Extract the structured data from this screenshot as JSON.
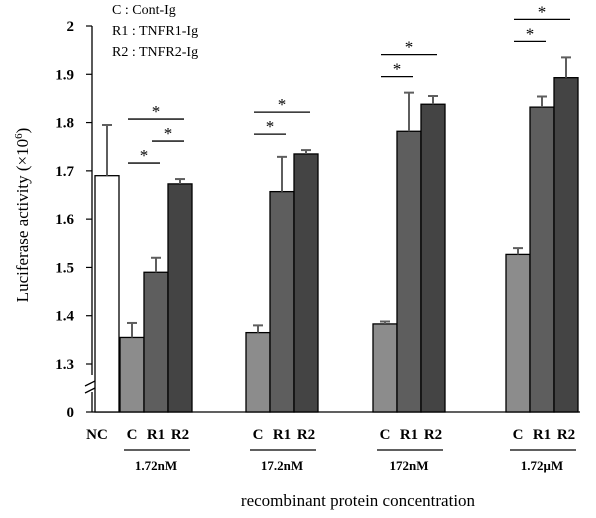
{
  "chart_data": {
    "type": "bar",
    "title": "",
    "xlabel": "recombinant protein concentration",
    "ylabel": "Luciferase activity (×10",
    "ylabel_exp": "6",
    "ylabel_close": ")",
    "y_axis_break": true,
    "ylim": [
      1.3,
      2.0
    ],
    "yticks": [
      "0",
      "1.3",
      "1.4",
      "1.5",
      "1.6",
      "1.7",
      "1.8",
      "1.9",
      "2"
    ],
    "legend": [
      "C : Cont-Ig",
      "R1 : TNFR1-Ig",
      "R2 : TNFR2-Ig"
    ],
    "legend_placement": "top-left",
    "colors": {
      "NC": "#ffffff",
      "C": "#8c8c8c",
      "R1": "#5e5e5e",
      "R2": "#444444"
    },
    "control": {
      "label": "NC",
      "value": 1.69,
      "error": 0.105
    },
    "category_labels": [
      "C",
      "R1",
      "R2"
    ],
    "groups": [
      {
        "label": "1.72nM",
        "values": [
          1.355,
          1.49,
          1.673
        ],
        "errors": [
          0.03,
          0.03,
          0.01
        ]
      },
      {
        "label": "17.2nM",
        "values": [
          1.365,
          1.657,
          1.735
        ],
        "errors": [
          0.015,
          0.072,
          0.008
        ]
      },
      {
        "label": "172nM",
        "values": [
          1.383,
          1.782,
          1.838
        ],
        "errors": [
          0.005,
          0.08,
          0.017
        ]
      },
      {
        "label": "1.72μM",
        "values": [
          1.527,
          1.832,
          1.893
        ],
        "errors": [
          0.013,
          0.022,
          0.042
        ]
      }
    ],
    "significance_marker": "*",
    "significance": [
      {
        "group": 0,
        "pairs": [
          [
            0,
            1
          ],
          [
            0,
            2
          ],
          [
            1,
            2
          ]
        ]
      },
      {
        "group": 1,
        "pairs": [
          [
            0,
            1
          ],
          [
            0,
            2
          ]
        ]
      },
      {
        "group": 2,
        "pairs": [
          [
            0,
            1
          ],
          [
            0,
            2
          ]
        ]
      },
      {
        "group": 3,
        "pairs": [
          [
            0,
            1
          ],
          [
            0,
            2
          ]
        ]
      }
    ]
  }
}
